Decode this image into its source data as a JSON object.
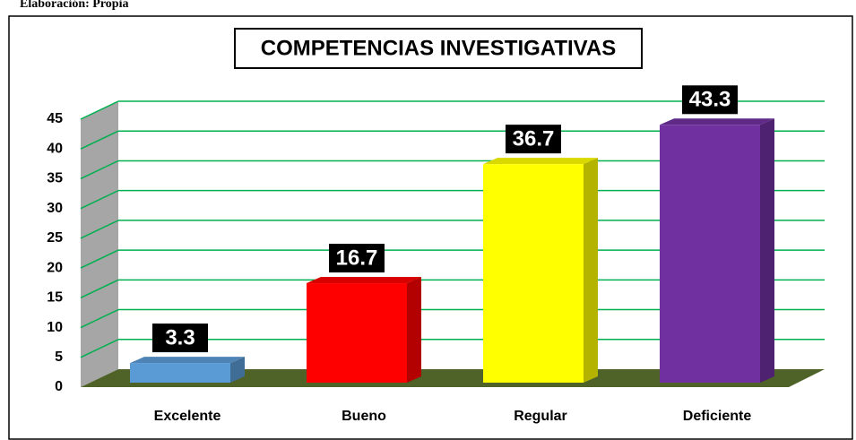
{
  "note": "Elaboración: Propia",
  "chart_data": {
    "type": "bar3d",
    "title": "COMPETENCIAS INVESTIGATIVAS",
    "categories": [
      "Excelente",
      "Bueno",
      "Regular",
      "Deficiente"
    ],
    "values": [
      3.3,
      16.7,
      36.7,
      43.3
    ],
    "colors": [
      "#5b9bd5",
      "#ff0000",
      "#ffff00",
      "#7030a0"
    ],
    "ylim": [
      0,
      45
    ],
    "yticks": [
      0,
      5,
      10,
      15,
      20,
      25,
      30,
      35,
      40,
      45
    ],
    "grid": true
  }
}
